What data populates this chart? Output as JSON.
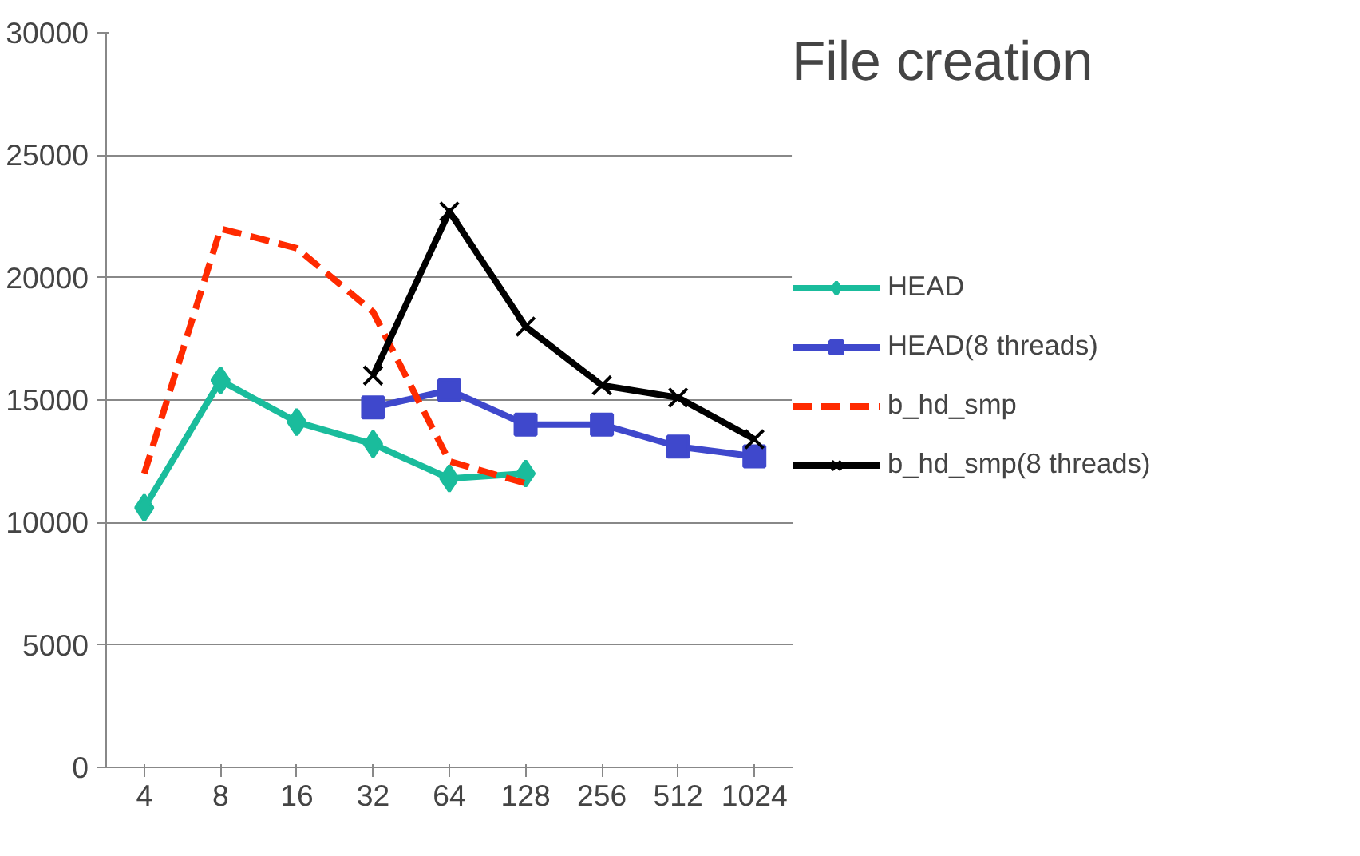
{
  "chart_data": {
    "type": "line",
    "title": "File creation",
    "categories": [
      "4",
      "8",
      "16",
      "32",
      "64",
      "128",
      "256",
      "512",
      "1024"
    ],
    "ylim": [
      0,
      30000
    ],
    "yticks": [
      0,
      5000,
      10000,
      15000,
      20000,
      25000,
      30000
    ],
    "grid": "y",
    "legend": "right",
    "series": [
      {
        "name": "HEAD",
        "color": "#1abc9c",
        "marker": "diamond",
        "line_style": "solid",
        "values": [
          10600,
          15800,
          14100,
          13200,
          11800,
          12000,
          null,
          null,
          null
        ]
      },
      {
        "name": "HEAD(8 threads)",
        "color": "#3f48cc",
        "marker": "square",
        "line_style": "solid",
        "values": [
          null,
          null,
          null,
          14700,
          15400,
          14000,
          14000,
          13100,
          12700
        ]
      },
      {
        "name": "b_hd_smp",
        "color": "#ff2a00",
        "marker": "none",
        "line_style": "dashed",
        "values": [
          12000,
          22000,
          21200,
          18600,
          12500,
          11600,
          null,
          null,
          null
        ]
      },
      {
        "name": "b_hd_smp(8 threads)",
        "color": "#000000",
        "marker": "x",
        "line_style": "solid",
        "values": [
          null,
          null,
          null,
          16000,
          22700,
          18000,
          15600,
          15100,
          13400
        ]
      }
    ]
  }
}
